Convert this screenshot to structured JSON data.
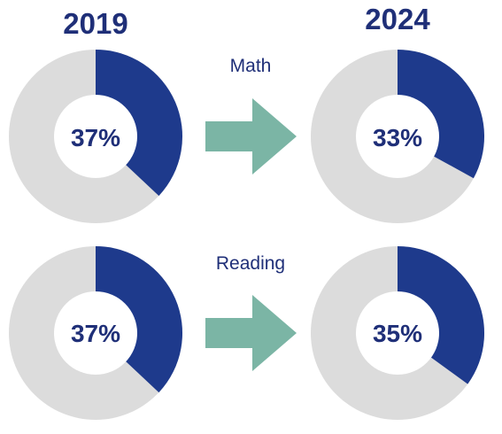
{
  "colors": {
    "filled": "#1e3a8c",
    "remainder": "#dcdcdc",
    "text": "#1f2f78",
    "arrow": "#7bb5a5"
  },
  "chart_data": {
    "type": "pie",
    "variant": "donut",
    "years": [
      "2019",
      "2024"
    ],
    "rows": [
      {
        "subject": "Math",
        "values": [
          {
            "year": "2019",
            "value": 37,
            "label": "37%"
          },
          {
            "year": "2024",
            "value": 33,
            "label": "33%"
          }
        ]
      },
      {
        "subject": "Reading",
        "values": [
          {
            "year": "2019",
            "value": 37,
            "label": "37%"
          },
          {
            "year": "2024",
            "value": 35,
            "label": "35%"
          }
        ]
      }
    ]
  }
}
